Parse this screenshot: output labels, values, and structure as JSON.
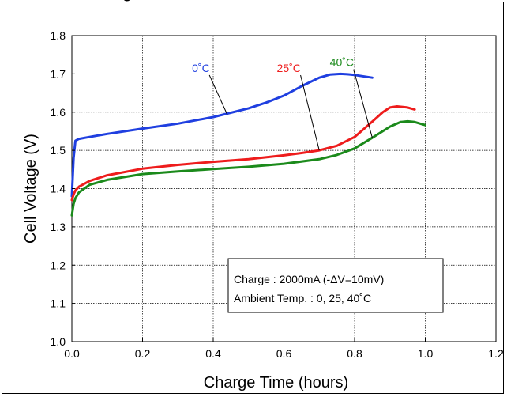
{
  "title_fragment": "g",
  "chart_data": {
    "type": "line",
    "xlabel": "Charge Time (hours)",
    "ylabel": "Cell Voltage (V)",
    "xlim": [
      0.0,
      1.2
    ],
    "ylim": [
      1.0,
      1.8
    ],
    "xticks": [
      "0.0",
      "0.2",
      "0.4",
      "0.6",
      "0.8",
      "1.0",
      "1.2"
    ],
    "yticks": [
      "1.0",
      "1.1",
      "1.2",
      "1.3",
      "1.4",
      "1.5",
      "1.6",
      "1.7",
      "1.8"
    ],
    "grid": true,
    "note_lines": [
      "Charge : 2000mA (-ΔV=10mV)",
      "Ambient Temp. : 0, 25, 40˚C"
    ],
    "series": [
      {
        "name": "0˚C",
        "color": "#1f3fe0",
        "x": [
          0.0,
          0.005,
          0.01,
          0.02,
          0.05,
          0.1,
          0.2,
          0.3,
          0.4,
          0.5,
          0.55,
          0.6,
          0.65,
          0.7,
          0.73,
          0.76,
          0.78,
          0.8,
          0.85
        ],
        "y": [
          1.38,
          1.48,
          1.525,
          1.53,
          1.535,
          1.543,
          1.557,
          1.57,
          1.587,
          1.61,
          1.625,
          1.643,
          1.668,
          1.69,
          1.698,
          1.7,
          1.699,
          1.697,
          1.69
        ]
      },
      {
        "name": "25˚C",
        "color": "#ee1c1c",
        "x": [
          0.0,
          0.005,
          0.01,
          0.02,
          0.05,
          0.1,
          0.2,
          0.3,
          0.4,
          0.5,
          0.6,
          0.65,
          0.7,
          0.75,
          0.8,
          0.85,
          0.88,
          0.9,
          0.92,
          0.95,
          0.97
        ],
        "y": [
          1.37,
          1.385,
          1.395,
          1.405,
          1.42,
          1.435,
          1.452,
          1.462,
          1.47,
          1.477,
          1.487,
          1.493,
          1.5,
          1.512,
          1.535,
          1.575,
          1.6,
          1.612,
          1.615,
          1.612,
          1.607
        ]
      },
      {
        "name": "40˚C",
        "color": "#1b8a1b",
        "x": [
          0.0,
          0.005,
          0.01,
          0.02,
          0.05,
          0.1,
          0.2,
          0.3,
          0.4,
          0.5,
          0.6,
          0.7,
          0.75,
          0.8,
          0.85,
          0.9,
          0.93,
          0.95,
          0.97,
          1.0
        ],
        "y": [
          1.33,
          1.36,
          1.375,
          1.39,
          1.41,
          1.423,
          1.438,
          1.445,
          1.451,
          1.457,
          1.465,
          1.477,
          1.488,
          1.505,
          1.533,
          1.562,
          1.574,
          1.576,
          1.574,
          1.566
        ]
      }
    ],
    "annotations": [
      {
        "series": 0,
        "label": "0˚C",
        "label_x": 0.34,
        "label_y": 1.705,
        "target_x": 0.44,
        "target_y": 1.593
      },
      {
        "series": 1,
        "label": "25˚C",
        "label_x": 0.58,
        "label_y": 1.705,
        "target_x": 0.7,
        "target_y": 1.5
      },
      {
        "series": 2,
        "label": "40˚C",
        "label_x": 0.73,
        "label_y": 1.72,
        "target_x": 0.85,
        "target_y": 1.533
      }
    ]
  }
}
